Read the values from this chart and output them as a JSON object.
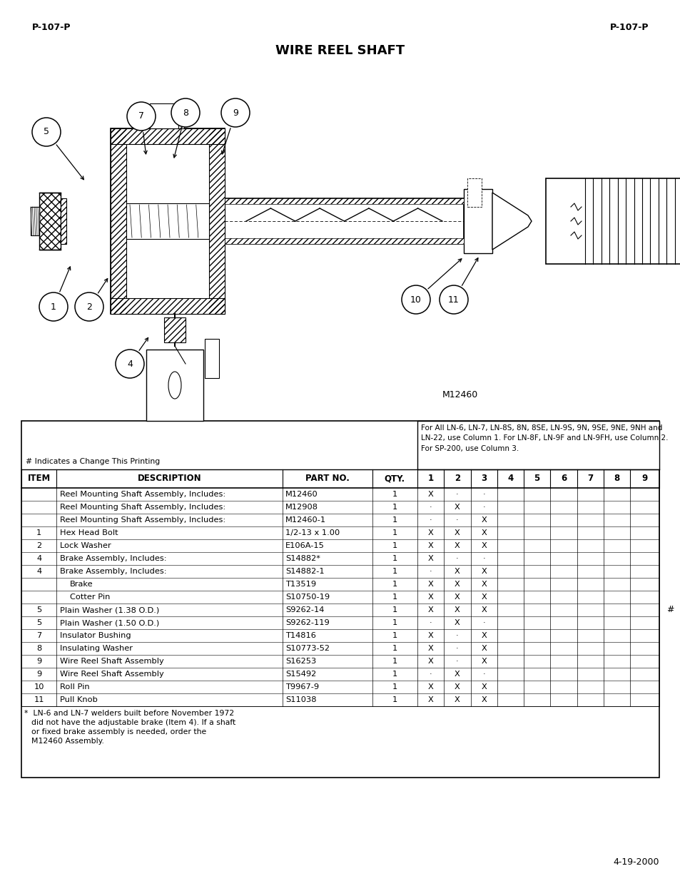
{
  "page_ref_left": "P-107-P",
  "page_ref_right": "P-107-P",
  "title": "WIRE REEL SHAFT",
  "diagram_label": "M12460",
  "date_label": "4-19-2000",
  "hash_note": "# Indicates a Change This Printing",
  "column_note": "For All LN-6, LN-7, LN-8S, 8N, 8SE, LN-9S, 9N, 9SE, 9NE, 9NH and\nLN-22, use Column 1. For LN-8F, LN-9F and LN-9FH, use Column 2.\nFor SP-200, use Column 3.",
  "table_headers": [
    "ITEM",
    "DESCRIPTION",
    "PART NO.",
    "QTY.",
    "1",
    "2",
    "3",
    "4",
    "5",
    "6",
    "7",
    "8",
    "9"
  ],
  "rows": [
    [
      "",
      "Reel Mounting Shaft Assembly, Includes:",
      "M12460",
      "1",
      "X",
      "·",
      "·",
      "",
      "",
      "",
      "",
      "",
      ""
    ],
    [
      "",
      "Reel Mounting Shaft Assembly, Includes:",
      "M12908",
      "1",
      "·",
      "X",
      "·",
      "",
      "",
      "",
      "",
      "",
      ""
    ],
    [
      "",
      "Reel Mounting Shaft Assembly, Includes:",
      "M12460-1",
      "1",
      "·",
      "·",
      "X",
      "",
      "",
      "",
      "",
      "",
      ""
    ],
    [
      "1",
      "Hex Head Bolt",
      "1/2-13 x 1.00",
      "1",
      "X",
      "X",
      "X",
      "",
      "",
      "",
      "",
      "",
      ""
    ],
    [
      "2",
      "Lock Washer",
      "E106A-15",
      "1",
      "X",
      "X",
      "X",
      "",
      "",
      "",
      "",
      "",
      ""
    ],
    [
      "4",
      "Brake Assembly, Includes:",
      "S14882*",
      "1",
      "X",
      "·",
      "·",
      "",
      "",
      "",
      "",
      "",
      ""
    ],
    [
      "4",
      "Brake Assembly, Includes:",
      "S14882-1",
      "1",
      "·",
      "X",
      "X",
      "",
      "",
      "",
      "",
      "",
      ""
    ],
    [
      "",
      "   Brake",
      "T13519",
      "1",
      "X",
      "X",
      "X",
      "",
      "",
      "",
      "",
      "",
      ""
    ],
    [
      "",
      "   Cotter Pin",
      "S10750-19",
      "1",
      "X",
      "X",
      "X",
      "",
      "",
      "",
      "",
      "",
      ""
    ],
    [
      "5",
      "Plain Washer (1.38 O.D.)",
      "S9262-14",
      "1",
      "X",
      "X",
      "X",
      "",
      "",
      "",
      "",
      "",
      ""
    ],
    [
      "5",
      "Plain Washer (1.50 O.D.)",
      "S9262-119",
      "1",
      "·",
      "X",
      "·",
      "",
      "",
      "",
      "",
      "",
      ""
    ],
    [
      "7",
      "Insulator Bushing",
      "T14816",
      "1",
      "X",
      "·",
      "X",
      "",
      "",
      "",
      "",
      "",
      ""
    ],
    [
      "8",
      "Insulating Washer",
      "S10773-52",
      "1",
      "X",
      "·",
      "X",
      "",
      "",
      "",
      "",
      "",
      ""
    ],
    [
      "9",
      "Wire Reel Shaft Assembly",
      "S16253",
      "1",
      "X",
      "·",
      "X",
      "",
      "",
      "",
      "",
      "",
      ""
    ],
    [
      "9",
      "Wire Reel Shaft Assembly",
      "S15492",
      "1",
      "·",
      "X",
      "·",
      "",
      "",
      "",
      "",
      "",
      ""
    ],
    [
      "10",
      "Roll Pin",
      "T9967-9",
      "1",
      "X",
      "X",
      "X",
      "",
      "",
      "",
      "",
      "",
      ""
    ],
    [
      "11",
      "Pull Knob",
      "S11038",
      "1",
      "X",
      "X",
      "X",
      "",
      "",
      "",
      "",
      "",
      ""
    ]
  ],
  "hash_side_row": 9,
  "footer_note_star": "*",
  "footer_note_text": "LN-6 and LN-7 welders built before November 1972\ndid not have the adjustable brake (Item 4). If a shaft\nor fixed brake assembly is needed, order the\nM12460 Assembly.",
  "background": "#ffffff",
  "text_color": "#000000"
}
